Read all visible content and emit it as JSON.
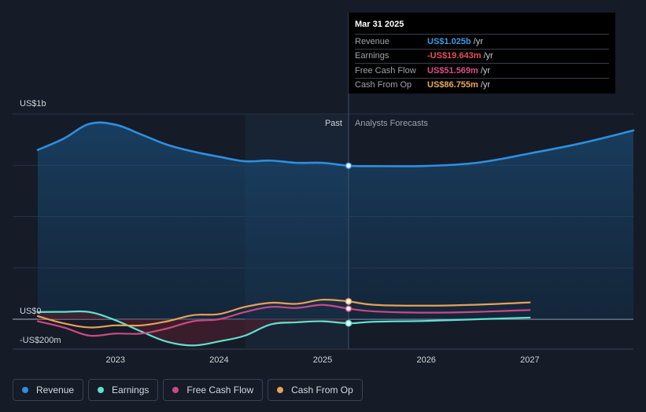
{
  "tooltip": {
    "date": "Mar 31 2025",
    "rows": [
      {
        "label": "Revenue",
        "value": "US$1.025b",
        "unit": "/yr",
        "color": "#3a9ce8"
      },
      {
        "label": "Earnings",
        "value": "-US$19.643m",
        "unit": "/yr",
        "color": "#e8505b"
      },
      {
        "label": "Free Cash Flow",
        "value": "US$51.569m",
        "unit": "/yr",
        "color": "#d94f8a"
      },
      {
        "label": "Cash From Op",
        "value": "US$86.755m",
        "unit": "/yr",
        "color": "#e8a85a"
      }
    ]
  },
  "labels": {
    "past": "Past",
    "forecast": "Analysts Forecasts"
  },
  "chart_data": {
    "type": "line",
    "ylabels": [
      {
        "text": "US$1b",
        "value": 1000
      },
      {
        "text": "US$0",
        "value": 0
      },
      {
        "text": "-US$200m",
        "value": -200
      }
    ],
    "ylim": [
      -140,
      1000
    ],
    "xlim": [
      2022.25,
      2028.0
    ],
    "xticks": [
      {
        "label": "2023",
        "value": 2023.0
      },
      {
        "label": "2024",
        "value": 2024.0
      },
      {
        "label": "2025",
        "value": 2025.0
      },
      {
        "label": "2026",
        "value": 2026.0
      },
      {
        "label": "2027",
        "value": 2027.0
      }
    ],
    "past_end": 2025.25,
    "shade_start": 2024.25,
    "series": [
      {
        "name": "Revenue",
        "color": "#2d8fe0",
        "x": [
          2022.25,
          2022.5,
          2022.75,
          2023.0,
          2023.25,
          2023.5,
          2023.75,
          2024.0,
          2024.25,
          2024.5,
          2024.75,
          2025.0,
          2025.25,
          2025.5,
          2026.0,
          2026.5,
          2027.0,
          2027.5,
          2028.0
        ],
        "y": [
          825,
          880,
          952,
          948,
          900,
          850,
          817,
          792,
          770,
          773,
          762,
          762,
          1025,
          746,
          747,
          763,
          808,
          858,
          920
        ]
      },
      {
        "name": "Earnings",
        "color": "#5fe0cf",
        "x": [
          2022.25,
          2022.5,
          2022.75,
          2023.0,
          2023.25,
          2023.5,
          2023.75,
          2024.0,
          2024.25,
          2024.5,
          2024.75,
          2025.0,
          2025.25,
          2025.5,
          2026.0,
          2026.5,
          2027.0
        ],
        "y": [
          35,
          36,
          35,
          -5,
          -60,
          -110,
          -128,
          -108,
          -80,
          -25,
          -15,
          -10,
          -19.643,
          -12,
          -8,
          0,
          8
        ]
      },
      {
        "name": "Free Cash Flow",
        "color": "#c94a84",
        "x": [
          2022.25,
          2022.5,
          2022.75,
          2023.0,
          2023.25,
          2023.5,
          2023.75,
          2024.0,
          2024.25,
          2024.5,
          2024.75,
          2025.0,
          2025.25,
          2025.5,
          2026.0,
          2026.5,
          2027.0
        ],
        "y": [
          -10,
          -40,
          -80,
          -70,
          -70,
          -45,
          -10,
          0,
          35,
          60,
          55,
          70,
          51.569,
          38,
          32,
          36,
          45
        ]
      },
      {
        "name": "Cash From Op",
        "color": "#e6a157",
        "x": [
          2022.25,
          2022.5,
          2022.75,
          2023.0,
          2023.25,
          2023.5,
          2023.75,
          2024.0,
          2024.25,
          2024.5,
          2024.75,
          2025.0,
          2025.25,
          2025.5,
          2026.0,
          2026.5,
          2027.0
        ],
        "y": [
          15,
          -20,
          -40,
          -30,
          -30,
          -10,
          20,
          25,
          60,
          80,
          75,
          95,
          86.755,
          70,
          66,
          71,
          82
        ]
      }
    ]
  },
  "legend": [
    {
      "label": "Revenue",
      "color": "#2d8fe0"
    },
    {
      "label": "Earnings",
      "color": "#5fe0cf"
    },
    {
      "label": "Free Cash Flow",
      "color": "#c94a84"
    },
    {
      "label": "Cash From Op",
      "color": "#e6a157"
    }
  ]
}
